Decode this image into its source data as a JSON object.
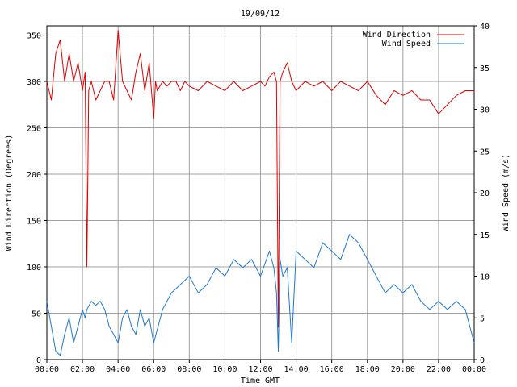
{
  "chart_data": {
    "type": "line",
    "title": "19/09/12",
    "xlabel": "Time GMT",
    "ylabel_left": "Wind Direction (Degrees)",
    "ylabel_right": "Wind Speed (m/s)",
    "x_ticks": [
      "00:00",
      "02:00",
      "04:00",
      "06:00",
      "08:00",
      "10:00",
      "12:00",
      "14:00",
      "16:00",
      "18:00",
      "20:00",
      "22:00",
      "00:00"
    ],
    "x_range_hours": [
      0,
      24
    ],
    "y_left_ticks": [
      0,
      50,
      100,
      150,
      200,
      250,
      300,
      350
    ],
    "y_left_range": [
      0,
      360
    ],
    "y_right_ticks": [
      0,
      5,
      10,
      15,
      20,
      25,
      30,
      35,
      40
    ],
    "y_right_range": [
      0,
      40
    ],
    "grid": true,
    "legend_placement": "top-right",
    "series": [
      {
        "name": "Wind Direction",
        "axis": "left",
        "color": "#e00000",
        "x": [
          0,
          0.25,
          0.5,
          0.75,
          1,
          1.25,
          1.5,
          1.75,
          2,
          2.15,
          2.25,
          2.35,
          2.5,
          2.75,
          3,
          3.25,
          3.5,
          3.75,
          4,
          4.25,
          4.5,
          4.75,
          5,
          5.25,
          5.5,
          5.75,
          6,
          6.1,
          6.2,
          6.5,
          6.75,
          7,
          7.25,
          7.5,
          7.75,
          8,
          8.5,
          9,
          9.5,
          10,
          10.5,
          11,
          11.5,
          12,
          12.25,
          12.5,
          12.75,
          12.9,
          13,
          13.1,
          13.25,
          13.5,
          13.75,
          14,
          14.5,
          15,
          15.5,
          16,
          16.5,
          17,
          17.5,
          18,
          18.5,
          19,
          19.5,
          20,
          20.5,
          21,
          21.5,
          22,
          22.5,
          23,
          23.5,
          24
        ],
        "values": [
          300,
          280,
          330,
          345,
          300,
          330,
          300,
          320,
          290,
          310,
          100,
          290,
          300,
          280,
          290,
          300,
          300,
          280,
          355,
          300,
          290,
          280,
          310,
          330,
          290,
          320,
          260,
          300,
          290,
          300,
          295,
          300,
          300,
          290,
          300,
          295,
          290,
          300,
          295,
          290,
          300,
          290,
          295,
          300,
          295,
          305,
          310,
          300,
          35,
          300,
          310,
          320,
          300,
          290,
          300,
          295,
          300,
          290,
          300,
          295,
          290,
          300,
          285,
          275,
          290,
          285,
          290,
          280,
          280,
          265,
          275,
          285,
          290,
          290
        ]
      },
      {
        "name": "Wind Speed",
        "axis": "right",
        "color": "#1e78d2",
        "x": [
          0,
          0.25,
          0.5,
          0.75,
          1,
          1.25,
          1.5,
          1.75,
          2,
          2.15,
          2.25,
          2.5,
          2.75,
          3,
          3.25,
          3.5,
          3.75,
          4,
          4.25,
          4.5,
          4.75,
          5,
          5.25,
          5.5,
          5.75,
          6,
          6.5,
          7,
          7.5,
          8,
          8.5,
          9,
          9.5,
          10,
          10.5,
          11,
          11.5,
          12,
          12.5,
          12.75,
          12.9,
          13,
          13.1,
          13.25,
          13.5,
          13.75,
          14,
          14.5,
          15,
          15.5,
          16,
          16.5,
          17,
          17.5,
          18,
          18.5,
          19,
          19.5,
          20,
          20.5,
          21,
          21.5,
          22,
          22.5,
          23,
          23.5,
          24
        ],
        "values": [
          7,
          4,
          1,
          0.5,
          3,
          5,
          2,
          4,
          6,
          5,
          6,
          7,
          6.5,
          7,
          6,
          4,
          3,
          2,
          5,
          6,
          4,
          3,
          6,
          4,
          5,
          2,
          6,
          8,
          9,
          10,
          8,
          9,
          11,
          10,
          12,
          11,
          12,
          10,
          13,
          11,
          8,
          1,
          12,
          10,
          11,
          2,
          13,
          12,
          11,
          14,
          13,
          12,
          15,
          14,
          12,
          10,
          8,
          9,
          8,
          9,
          7,
          6,
          7,
          6,
          7,
          6,
          2
        ]
      }
    ]
  }
}
